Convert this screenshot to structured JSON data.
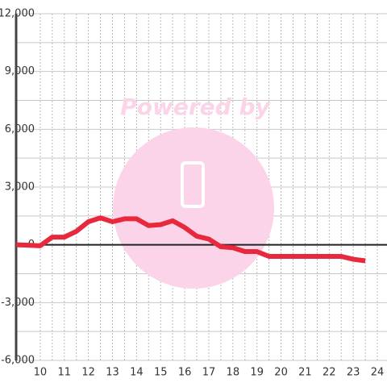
{
  "chart_data": {
    "type": "line",
    "watermark": "Powered by",
    "x": [
      9,
      9.5,
      10,
      10.5,
      11,
      11.5,
      12,
      12.5,
      13,
      13.5,
      14,
      14.5,
      15,
      15.5,
      16,
      16.5,
      17,
      17.5,
      18,
      18.5,
      19,
      19.5,
      20,
      20.5,
      21,
      21.5,
      22,
      22.5,
      23,
      23.5
    ],
    "series": [
      {
        "color": "#e8283c",
        "values": [
          0,
          -20,
          -50,
          400,
          400,
          700,
          1200,
          1400,
          1200,
          1350,
          1350,
          1000,
          1050,
          1250,
          900,
          450,
          300,
          -100,
          -150,
          -350,
          -350,
          -600,
          -600,
          -600,
          -600,
          -600,
          -600,
          -600,
          -750,
          -830
        ]
      }
    ],
    "xlim": [
      9,
      24.4
    ],
    "xticks": [
      10,
      11,
      12,
      13,
      14,
      15,
      16,
      17,
      18,
      19,
      20,
      21,
      22,
      23,
      24
    ],
    "ylim": [
      -6000,
      12000
    ],
    "yticks": [
      {
        "value": -6000,
        "label": "-6,000"
      },
      {
        "value": -3000,
        "label": "-3,000"
      },
      0,
      {
        "value": 3000,
        "label": "3,000"
      },
      {
        "value": 6000,
        "label": "6,000"
      },
      {
        "value": 9000,
        "label": "9,000"
      },
      {
        "value": 12000,
        "label": "12,000"
      }
    ],
    "grid": true
  }
}
